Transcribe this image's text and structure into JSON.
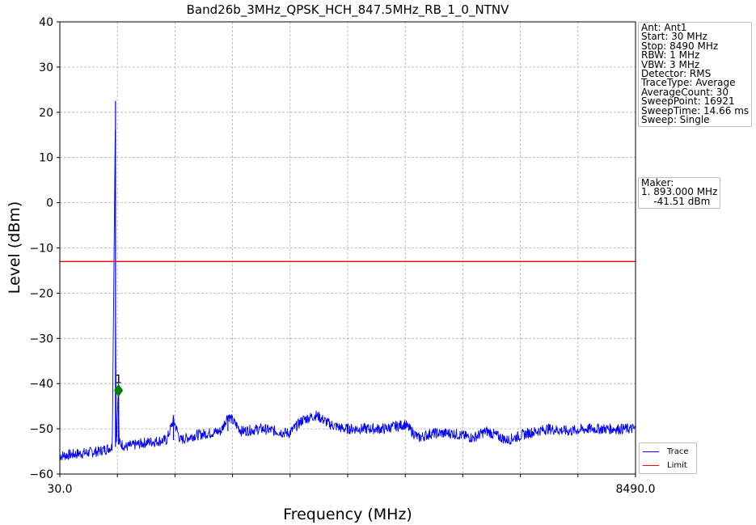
{
  "chart_data": {
    "type": "line",
    "title": "Band26b_3MHz_QPSK_HCH_847.5MHz_RB_1_0_NTNV",
    "xlabel": "Frequency (MHz)",
    "ylabel": "Level (dBm)",
    "xlim": [
      30.0,
      8490.0
    ],
    "ylim": [
      -60,
      40
    ],
    "x_tick_labels": [
      "30.0",
      "8490.0"
    ],
    "y_ticks": [
      40,
      30,
      20,
      10,
      0,
      -10,
      -20,
      -30,
      -40,
      -50,
      -60
    ],
    "grid": true,
    "legend_placement": "bottom-right",
    "series": [
      {
        "name": "Trace",
        "color": "#0000ff",
        "x": [
          30,
          300,
          600,
          800,
          848,
          850,
          860,
          893,
          900,
          1000,
          1300,
          1600,
          1700,
          1800,
          2000,
          2400,
          2500,
          2700,
          3000,
          3400,
          3600,
          3800,
          4000,
          4200,
          4400,
          4800,
          5100,
          5300,
          5500,
          5600,
          5800,
          6100,
          6300,
          6600,
          6900,
          7200,
          7500,
          7800,
          8100,
          8490
        ],
        "y": [
          -56,
          -55.5,
          -55,
          -54,
          22.5,
          -27,
          -53.5,
          -40,
          -53,
          -54,
          -53,
          -52.5,
          -48,
          -52.5,
          -51.5,
          -50.5,
          -47,
          -50.5,
          -50,
          -51,
          -48,
          -47,
          -49,
          -50,
          -50,
          -50,
          -49,
          -52,
          -51,
          -51,
          -51,
          -52,
          -50.5,
          -52.5,
          -51,
          -50,
          -50.5,
          -50,
          -50,
          -50
        ]
      },
      {
        "name": "Limit",
        "color": "#ff0000",
        "x": [
          30,
          8490
        ],
        "y": [
          -13,
          -13
        ]
      }
    ],
    "marker": {
      "label": "1",
      "x": 893.0,
      "y": -41.51,
      "color": "#008000"
    }
  },
  "settings_text": "Ant: Ant1\nStart: 30 MHz\nStop: 8490 MHz\nRBW: 1 MHz\nVBW: 3 MHz\nDetector: RMS\nTraceType: Average\nAverageCount: 30\nSweepPoint: 16921\nSweepTime: 14.66 ms\nSweep: Single",
  "marker_text": "Maker:\n1. 893.000 MHz\n    -41.51 dBm",
  "legend": [
    {
      "label": "Trace",
      "color": "#0000ff"
    },
    {
      "label": "Limit",
      "color": "#ff0000"
    }
  ]
}
